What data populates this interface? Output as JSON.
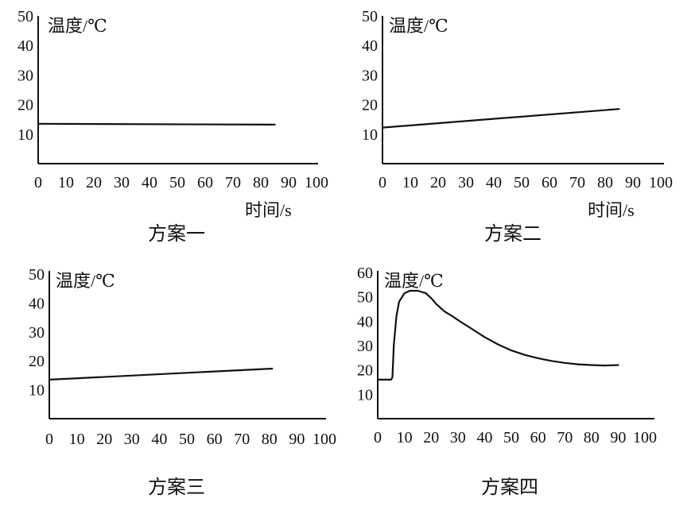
{
  "chart_data": [
    {
      "type": "line",
      "caption": "方案一",
      "ylabel": "温度/℃",
      "xlabel": "时间/s",
      "ylim": [
        0,
        50
      ],
      "xlim": [
        0,
        100
      ],
      "yticks": [
        "10",
        "20",
        "30",
        "40",
        "50"
      ],
      "xticks": [
        "0",
        "10",
        "20",
        "30",
        "40",
        "50",
        "60",
        "70",
        "80",
        "90",
        "100"
      ],
      "series": [
        {
          "x": [
            0,
            85
          ],
          "y": [
            13.5,
            13.2
          ]
        }
      ]
    },
    {
      "type": "line",
      "caption": "方案二",
      "ylabel": "温度/℃",
      "xlabel": "时间/s",
      "ylim": [
        0,
        50
      ],
      "xlim": [
        0,
        100
      ],
      "yticks": [
        "10",
        "20",
        "30",
        "40",
        "50"
      ],
      "xticks": [
        "0",
        "10",
        "20",
        "30",
        "40",
        "50",
        "60",
        "70",
        "80",
        "90",
        "100"
      ],
      "series": [
        {
          "x": [
            0,
            85
          ],
          "y": [
            12.2,
            18.5
          ]
        }
      ]
    },
    {
      "type": "line",
      "caption": "方案三",
      "ylabel": "温度/℃",
      "xlabel": "",
      "ylim": [
        0,
        50
      ],
      "xlim": [
        0,
        100
      ],
      "yticks": [
        "10",
        "20",
        "30",
        "40",
        "50"
      ],
      "xticks": [
        "0",
        "10",
        "20",
        "30",
        "40",
        "50",
        "60",
        "70",
        "80",
        "90",
        "100"
      ],
      "series": [
        {
          "x": [
            0,
            81
          ],
          "y": [
            13.5,
            17.3
          ]
        }
      ]
    },
    {
      "type": "line",
      "caption": "方案四",
      "ylabel": "温度/℃",
      "xlabel": "",
      "ylim": [
        0,
        60
      ],
      "xlim": [
        0,
        100
      ],
      "yticks": [
        "10",
        "20",
        "30",
        "40",
        "50",
        "60"
      ],
      "xticks": [
        "0",
        "10",
        "20",
        "30",
        "40",
        "50",
        "60",
        "70",
        "80",
        "90",
        "100"
      ],
      "series": [
        {
          "x": [
            0,
            5,
            5.5,
            6,
            7,
            8,
            10,
            12,
            15,
            18,
            20,
            22,
            25,
            28,
            30,
            35,
            40,
            45,
            50,
            55,
            60,
            65,
            70,
            75,
            80,
            85,
            90
          ],
          "y": [
            16,
            16,
            17,
            30,
            42,
            48,
            51.5,
            52.5,
            52.5,
            51.5,
            49.5,
            47,
            44,
            42,
            40.5,
            37,
            33.5,
            30.5,
            28,
            26.2,
            24.8,
            23.7,
            22.9,
            22.3,
            22,
            21.8,
            22
          ]
        }
      ]
    }
  ]
}
